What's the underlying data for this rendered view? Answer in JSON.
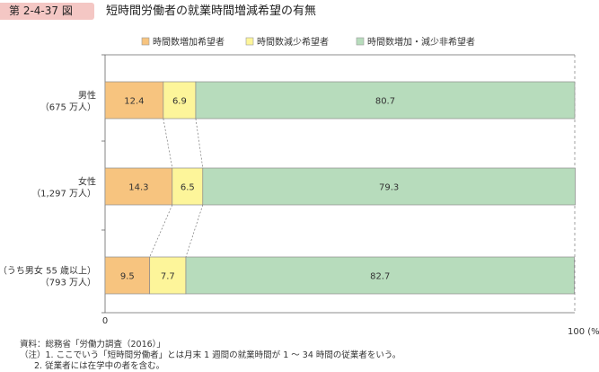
{
  "figure": {
    "number": "第 2-4-37 図",
    "title": "短時間労働者の就業時間増減希望の有無"
  },
  "notes": {
    "source": "資料：総務省「労働力調査（2016）」",
    "note1": "（注）1. ここでいう「短時間労働者」とは月末 1 週間の就業時間が 1 ～ 34 時間の従業者をいう。",
    "note2": "2. 従業者には在学中の者を含む。"
  },
  "chart_data": {
    "type": "bar",
    "orientation": "horizontal",
    "stacked": true,
    "categories": [
      [
        "男性",
        "（675 万人）"
      ],
      [
        "女性",
        "（1,297 万人）"
      ],
      [
        "（うち男女 55 歳以上）",
        "（793 万人）"
      ]
    ],
    "series": [
      {
        "name": "時間数増加希望者",
        "color": "#f7c47f",
        "values": [
          12.4,
          14.3,
          9.5
        ]
      },
      {
        "name": "時間数減少希望者",
        "color": "#fdf59a",
        "values": [
          6.9,
          6.5,
          7.7
        ]
      },
      {
        "name": "時間数増加・減少非希望者",
        "color": "#b7dcbc",
        "values": [
          80.7,
          79.3,
          82.7
        ]
      }
    ],
    "xlim": [
      0,
      100
    ],
    "x_tick_labels": [
      "0",
      "100 (%)"
    ],
    "legend_position": "top"
  }
}
